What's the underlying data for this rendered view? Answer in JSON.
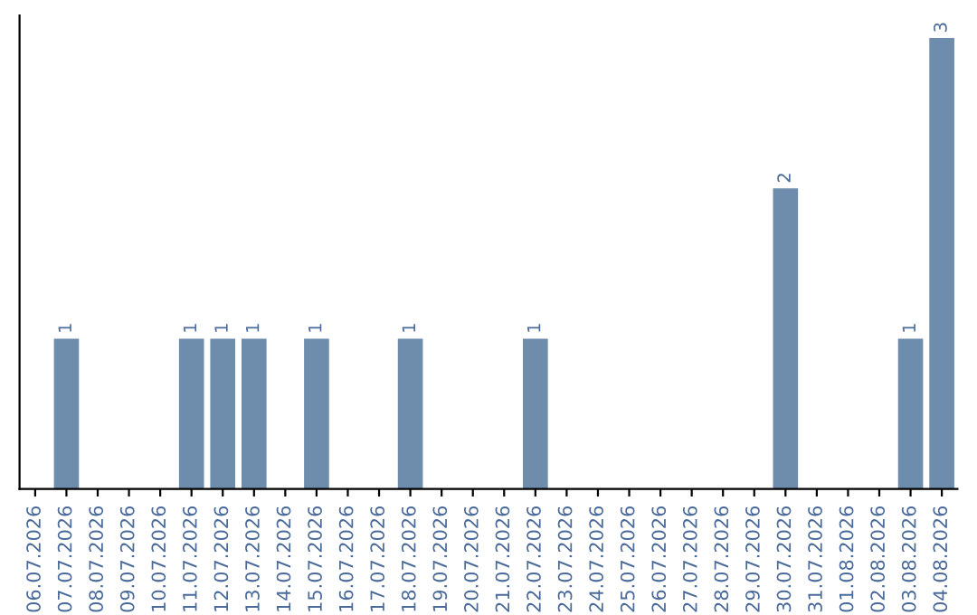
{
  "chart_data": {
    "type": "bar",
    "categories": [
      "06.07.2026",
      "07.07.2026",
      "08.07.2026",
      "09.07.2026",
      "10.07.2026",
      "11.07.2026",
      "12.07.2026",
      "13.07.2026",
      "14.07.2026",
      "15.07.2026",
      "16.07.2026",
      "17.07.2026",
      "18.07.2026",
      "19.07.2026",
      "20.07.2026",
      "21.07.2026",
      "22.07.2026",
      "23.07.2026",
      "24.07.2026",
      "25.07.2026",
      "26.07.2026",
      "27.07.2026",
      "28.07.2026",
      "29.07.2026",
      "30.07.2026",
      "31.07.2026",
      "01.08.2026",
      "02.08.2026",
      "03.08.2026",
      "04.08.2026"
    ],
    "values": [
      0,
      1,
      0,
      0,
      0,
      1,
      1,
      1,
      0,
      1,
      0,
      0,
      1,
      0,
      0,
      0,
      1,
      0,
      0,
      0,
      0,
      0,
      0,
      0,
      2,
      0,
      0,
      0,
      1,
      3
    ],
    "value_labels": [
      null,
      "1",
      null,
      null,
      null,
      "1",
      "1",
      "1",
      null,
      "1",
      null,
      null,
      "1",
      null,
      null,
      null,
      "1",
      null,
      null,
      null,
      null,
      null,
      null,
      null,
      "2",
      null,
      null,
      null,
      "1",
      "3"
    ],
    "color": "#6e8cab",
    "tick_labels": "x",
    "grid": false,
    "legend": false
  }
}
